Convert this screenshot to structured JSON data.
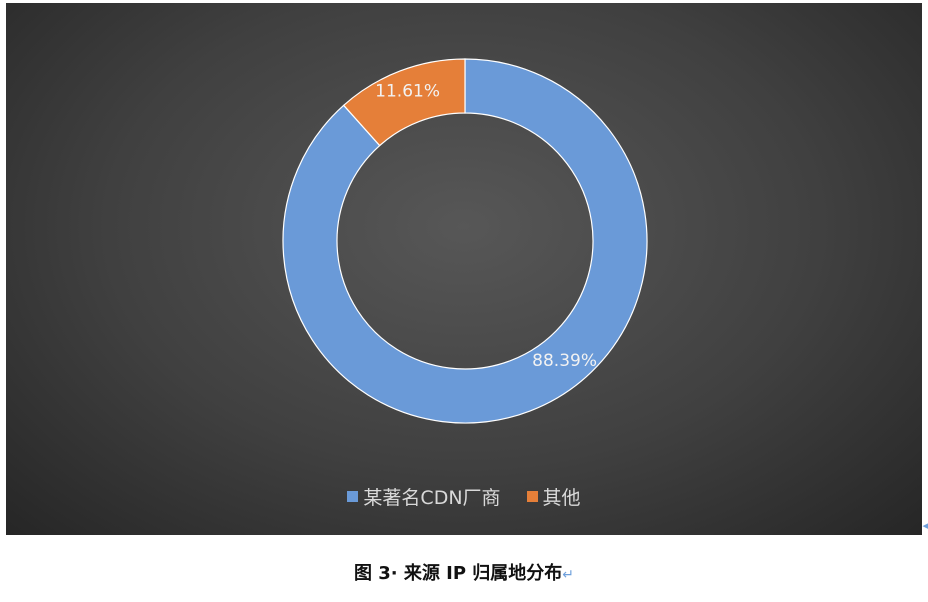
{
  "chart_data": {
    "type": "pie",
    "variant": "donut",
    "categories": [
      "某著名CDN厂商",
      "其他"
    ],
    "values": [
      88.39,
      11.61
    ],
    "data_labels": [
      "88.39%",
      "11.61%"
    ],
    "colors": [
      "#6a9ad8",
      "#e57f39"
    ],
    "legend_position": "bottom",
    "background": "#404040",
    "title": ""
  },
  "caption": {
    "text": "图 3· 来源 IP 归属地分布",
    "return_mark": "↵"
  }
}
